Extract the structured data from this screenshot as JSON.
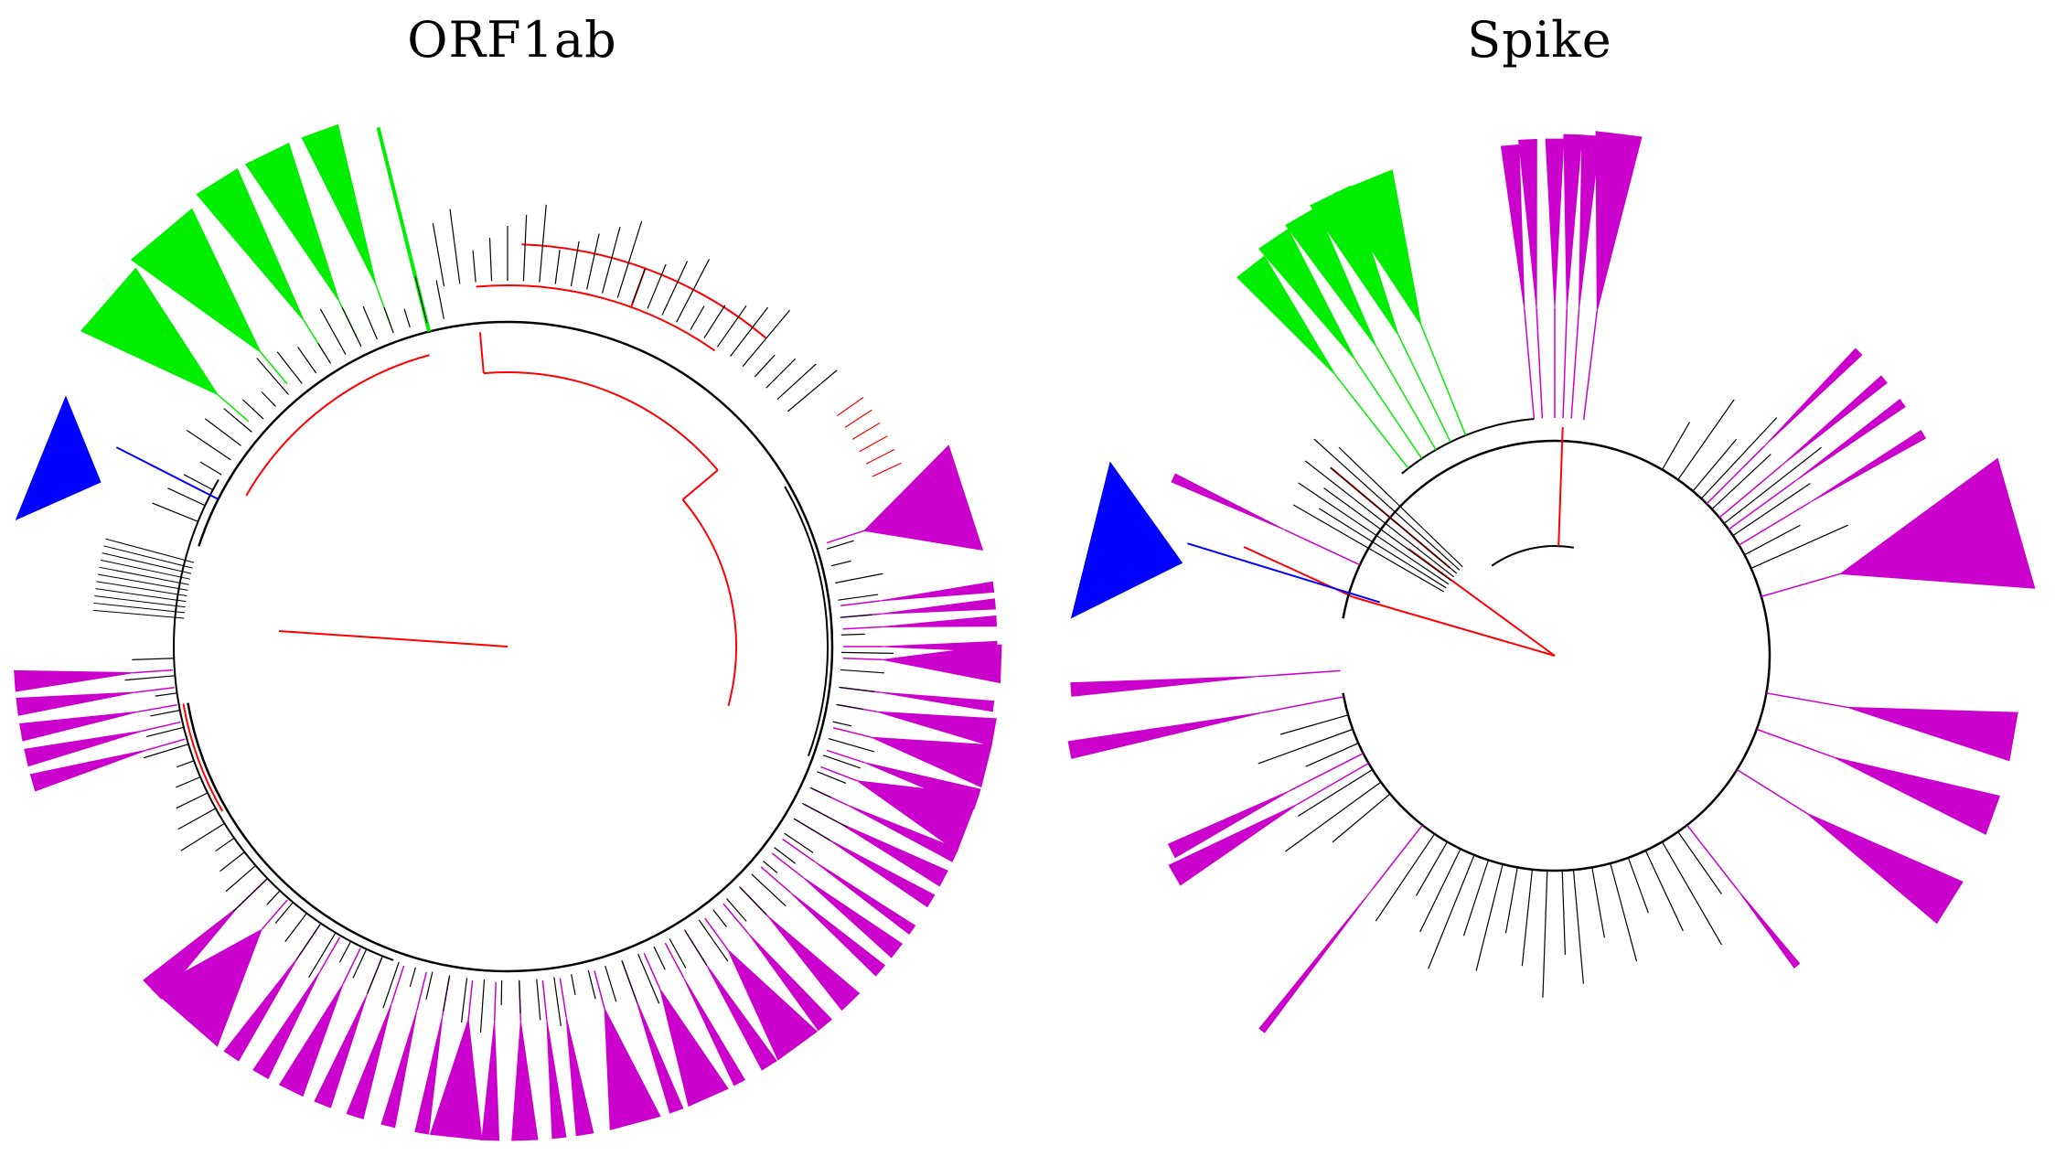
{
  "figure": {
    "panels": [
      {
        "id": "orf1ab",
        "title": "ORF1ab",
        "tree_type": "circular phylogenetic tree",
        "clade_colors": [
          "#ff0000",
          "#00ee00",
          "#0000ff",
          "#cc00cc",
          "#000000"
        ]
      },
      {
        "id": "spike",
        "title": "Spike",
        "tree_type": "circular phylogenetic tree",
        "clade_colors": [
          "#ff0000",
          "#00ee00",
          "#0000ff",
          "#cc00cc",
          "#000000"
        ]
      }
    ],
    "colors": {
      "red": "#ff0000",
      "green": "#00ee00",
      "blue": "#0000ff",
      "magenta": "#cc00cc",
      "black": "#000000"
    }
  }
}
